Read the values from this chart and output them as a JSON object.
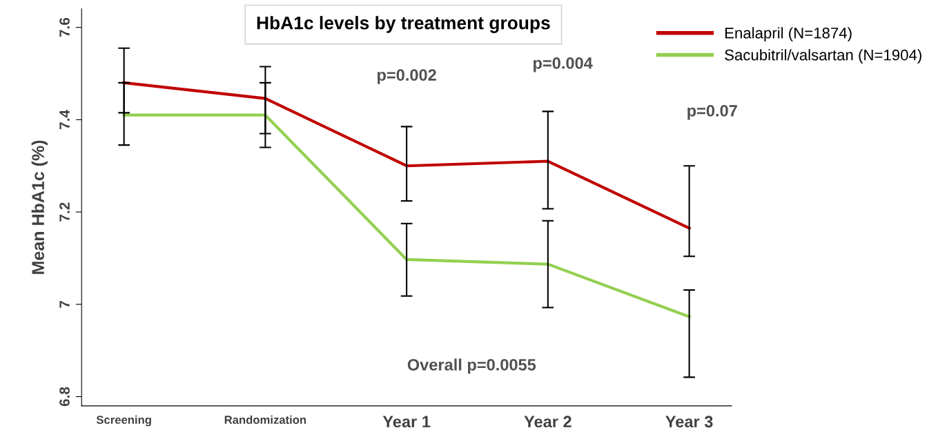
{
  "chart_data": {
    "type": "line",
    "title": "HbA1c levels by treatment groups",
    "ylabel": "Mean HbA1c (%)",
    "categories": [
      "Screening",
      "Randomization",
      "Year 1",
      "Year 2",
      "Year 3"
    ],
    "series": [
      {
        "name": "Enalapril (N=1874)",
        "color": "#c00000",
        "values": [
          7.48,
          7.446,
          7.3,
          7.31,
          7.165
        ],
        "errors": [
          [
            7.415,
            7.555
          ],
          [
            7.37,
            7.515
          ],
          [
            7.224,
            7.385
          ],
          [
            7.207,
            7.418
          ],
          [
            7.104,
            7.3
          ]
        ]
      },
      {
        "name": "Sacubitril/valsartan (N=1904)",
        "color": "#92d050",
        "values": [
          7.41,
          7.41,
          7.097,
          7.087,
          6.973
        ],
        "errors": [
          [
            7.345,
            7.48
          ],
          [
            7.34,
            7.48
          ],
          [
            7.018,
            7.175
          ],
          [
            6.993,
            7.181
          ],
          [
            6.842,
            7.031
          ]
        ]
      }
    ],
    "ylim": [
      6.78,
      7.64
    ],
    "yticks": [
      6.8,
      7,
      7.2,
      7.4,
      7.6
    ],
    "annotations": [
      "p=0.002",
      "p=0.004",
      "p=0.07",
      "Overall p=0.0055"
    ],
    "legend": "top right",
    "grid": false,
    "marker": "none",
    "line_style": "solid"
  }
}
